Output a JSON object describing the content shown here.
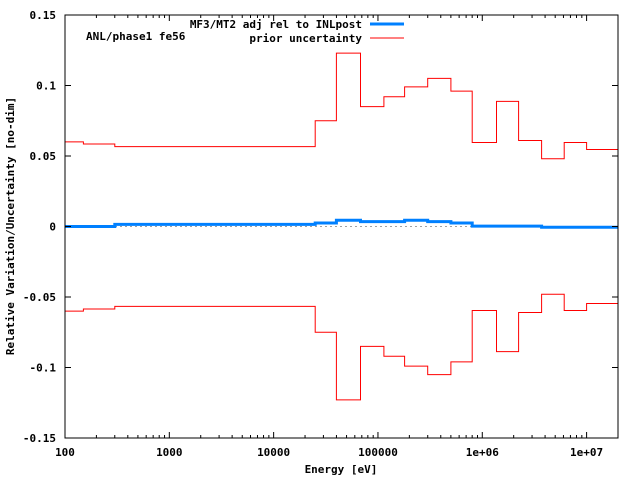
{
  "chart_data": {
    "type": "line",
    "step": true,
    "annotation": "ANL/phase1 fe56",
    "xlabel": "Energy [eV]",
    "ylabel": "Relative Variation/Uncertainty [no-dim]",
    "xscale": "log",
    "xlim": [
      100,
      20000000
    ],
    "ylim": [
      -0.15,
      0.15
    ],
    "xticks": [
      100,
      1000,
      10000,
      100000,
      1000000,
      10000000
    ],
    "xtick_labels": [
      "100",
      "1000",
      "10000",
      "100000",
      "1e+06",
      "1e+07"
    ],
    "yticks": [
      0.15,
      0.1,
      0.05,
      0,
      -0.05,
      -0.1,
      -0.15
    ],
    "ytick_labels": [
      "0.15",
      "0.1",
      "0.05",
      "0",
      "-0.05",
      "-0.1",
      "-0.15"
    ],
    "grid": false,
    "legend_position": "top-center",
    "bin_edges": [
      100,
      150,
      300,
      25000,
      40000,
      68000,
      114000,
      180000,
      300000,
      500000,
      800000,
      1370000,
      2230000,
      3700000,
      6100000,
      10000000,
      20000000
    ],
    "series": [
      {
        "name": "MF3/MT2 adj rel to INLpost",
        "color": "#0080ff",
        "values": [
          0.0,
          0.0,
          0.0015,
          0.0025,
          0.0045,
          0.0035,
          0.0035,
          0.0045,
          0.0035,
          0.0025,
          0.0003,
          0.0003,
          0.0003,
          -0.0005,
          -0.0005,
          -0.0005
        ]
      },
      {
        "name": "prior uncertainty",
        "color": "#ff0000",
        "mirrored": true,
        "values": [
          0.06,
          0.0585,
          0.0567,
          0.075,
          0.123,
          0.085,
          0.092,
          0.099,
          0.105,
          0.096,
          0.0596,
          0.0887,
          0.061,
          0.048,
          0.0596,
          0.0546
        ]
      }
    ]
  }
}
